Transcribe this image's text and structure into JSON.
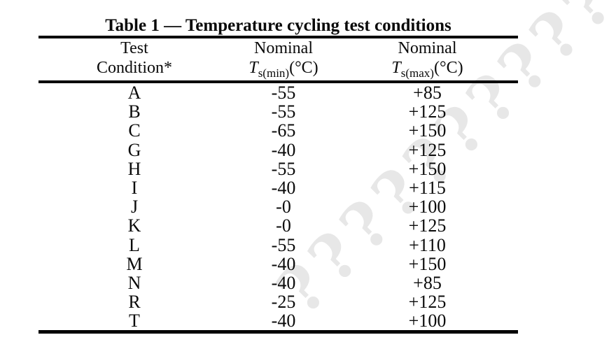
{
  "title": "Table 1 — Temperature cycling test conditions",
  "watermark": {
    "text": "????????????",
    "color": "#e7e7e7"
  },
  "table": {
    "header": {
      "col1": {
        "line1": "Test",
        "line2": "Condition*"
      },
      "col2": {
        "line1": "Nominal",
        "symbol": "T",
        "subscript": "s(min)",
        "unit": "(°C)"
      },
      "col3": {
        "line1": "Nominal",
        "symbol": "T",
        "subscript": "s(max)",
        "unit": "(°C)"
      }
    },
    "rows": [
      {
        "condition": "A",
        "tmin": "-55",
        "tmax": "+85"
      },
      {
        "condition": "B",
        "tmin": "-55",
        "tmax": "+125"
      },
      {
        "condition": "C",
        "tmin": "-65",
        "tmax": "+150"
      },
      {
        "condition": "G",
        "tmin": "-40",
        "tmax": "+125"
      },
      {
        "condition": "H",
        "tmin": "-55",
        "tmax": "+150"
      },
      {
        "condition": "I",
        "tmin": "-40",
        "tmax": "+115"
      },
      {
        "condition": "J",
        "tmin": "-0",
        "tmax": "+100"
      },
      {
        "condition": "K",
        "tmin": "-0",
        "tmax": "+125"
      },
      {
        "condition": "L",
        "tmin": "-55",
        "tmax": "+110"
      },
      {
        "condition": "M",
        "tmin": "-40",
        "tmax": "+150"
      },
      {
        "condition": "N",
        "tmin": "-40",
        "tmax": "+85"
      },
      {
        "condition": "R",
        "tmin": "-25",
        "tmax": "+125"
      },
      {
        "condition": "T",
        "tmin": "-40",
        "tmax": "+100"
      }
    ]
  }
}
